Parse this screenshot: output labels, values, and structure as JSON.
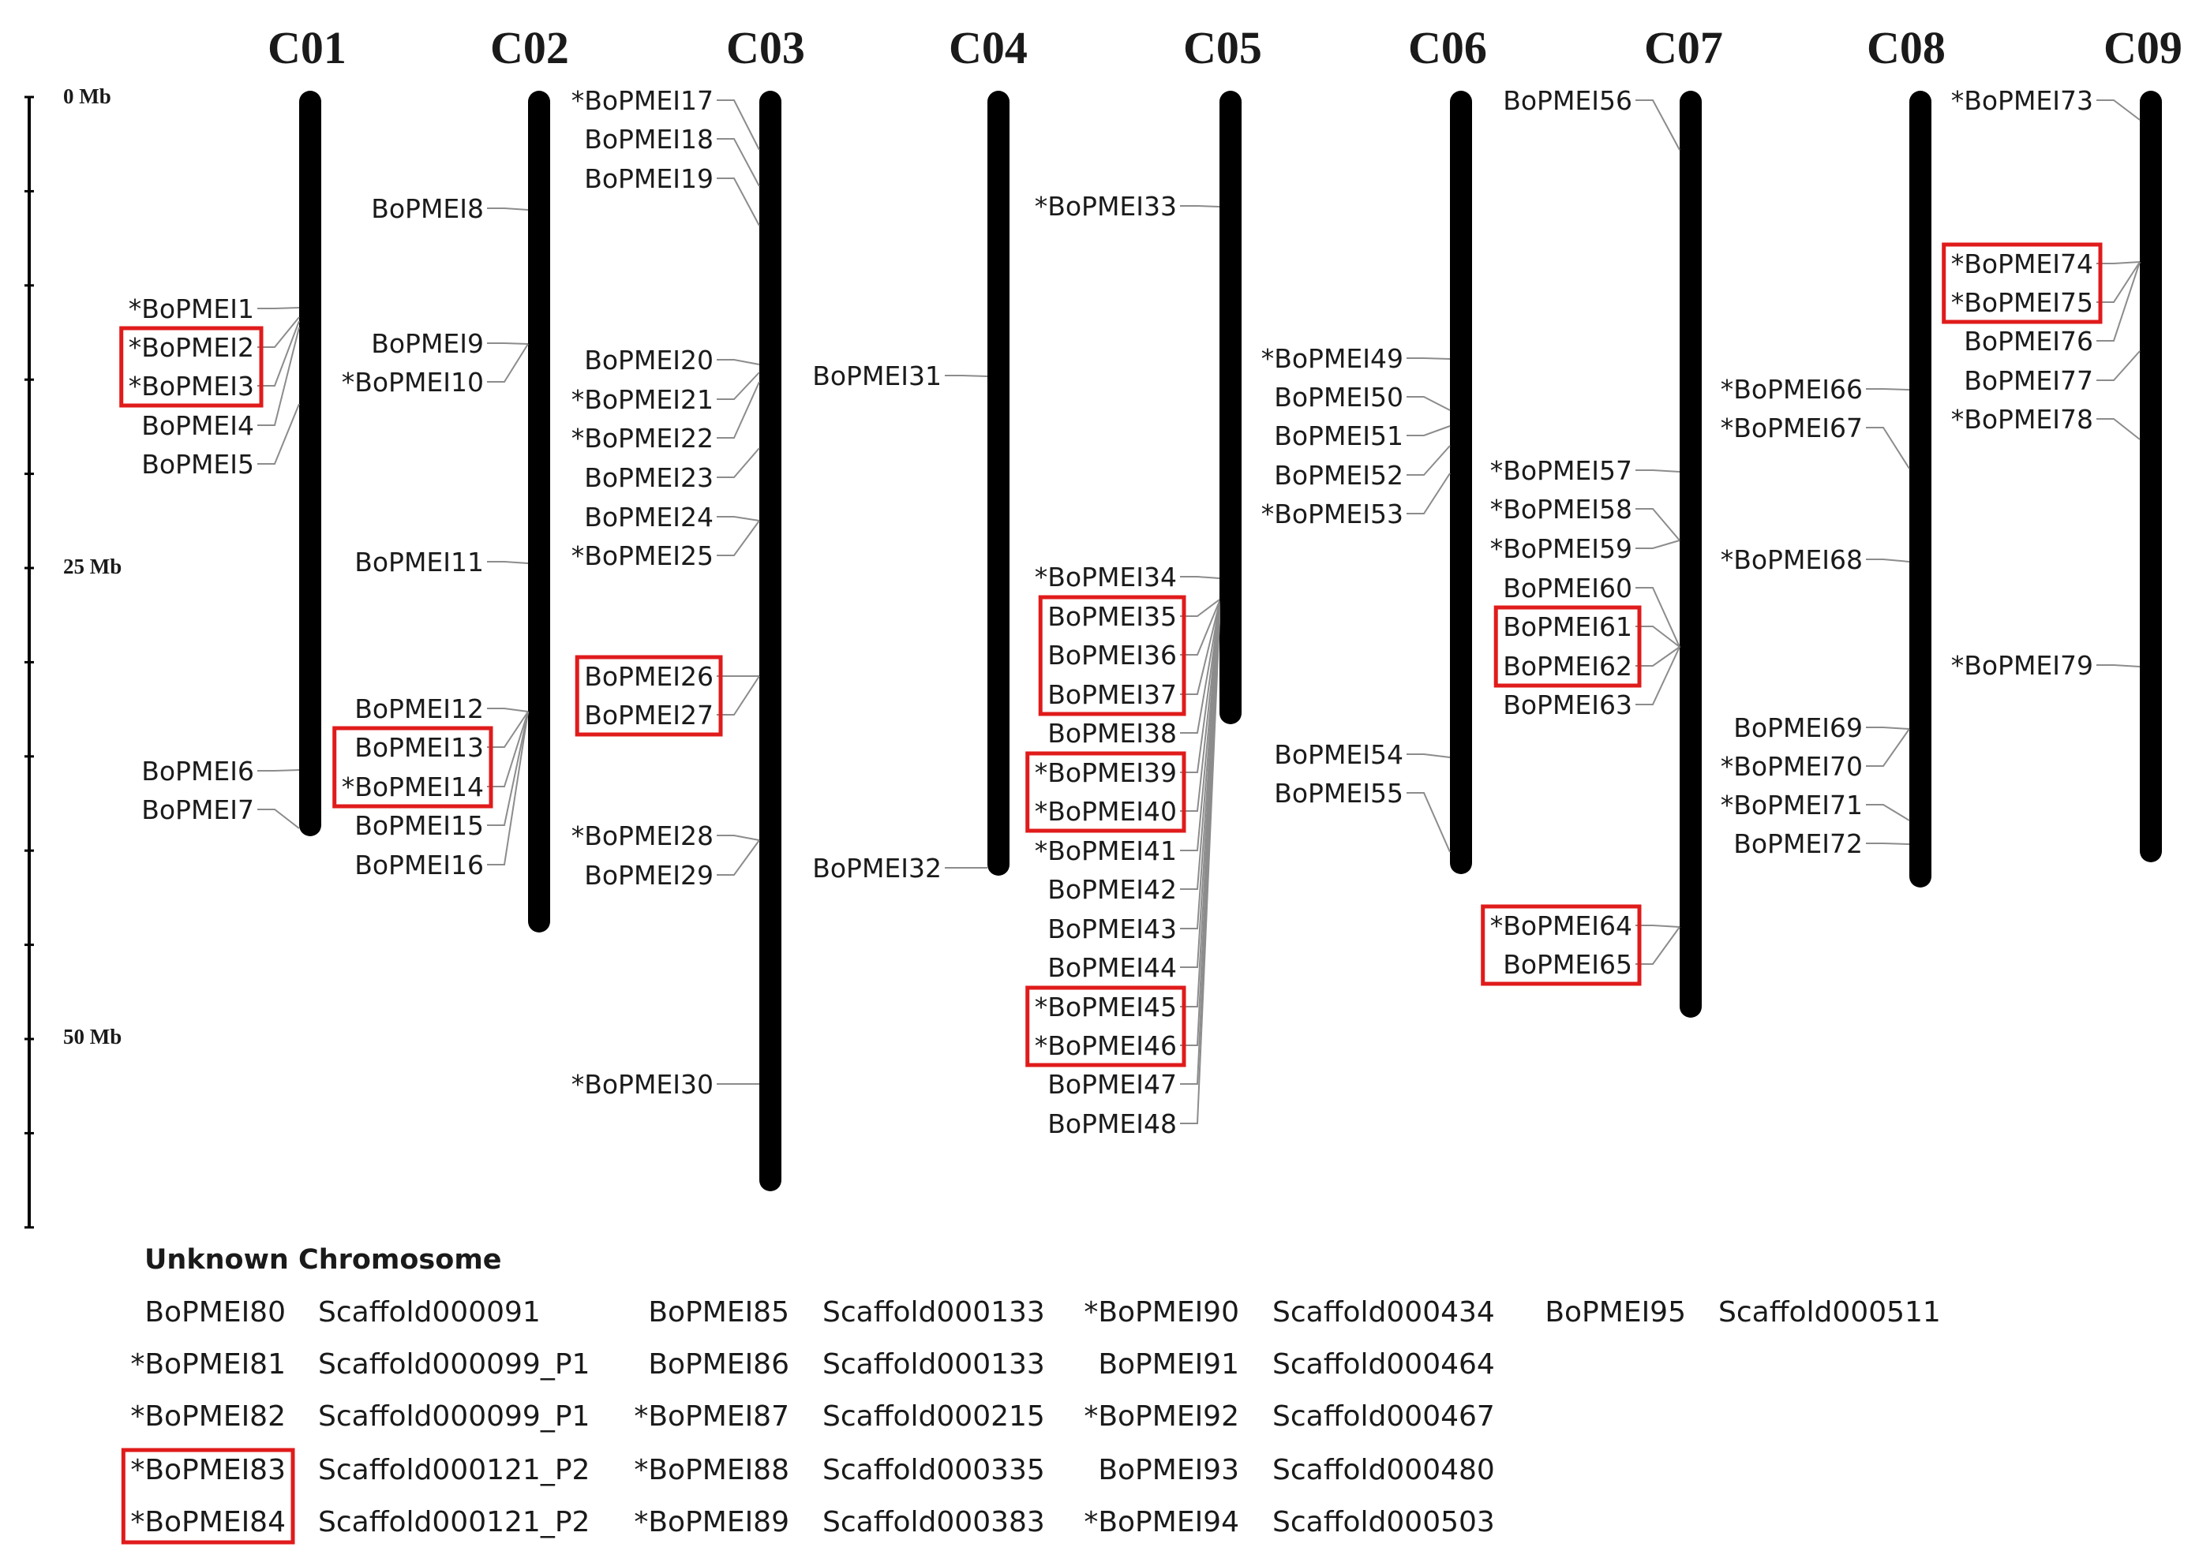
{
  "scale": {
    "labels": [
      "0 Mb",
      "25 Mb",
      "50 Mb"
    ]
  },
  "chromosomes": [
    {
      "name": "C01",
      "genes": [
        {
          "label": "*BoPMEI1"
        },
        {
          "label": "*BoPMEI2"
        },
        {
          "label": "*BoPMEI3"
        },
        {
          "label": "BoPMEI4"
        },
        {
          "label": "BoPMEI5"
        },
        {
          "label": "BoPMEI6"
        },
        {
          "label": "BoPMEI7"
        }
      ]
    },
    {
      "name": "C02",
      "genes": [
        {
          "label": "BoPMEI8"
        },
        {
          "label": "BoPMEI9"
        },
        {
          "label": "*BoPMEI10"
        },
        {
          "label": "BoPMEI11"
        },
        {
          "label": "BoPMEI12"
        },
        {
          "label": "BoPMEI13"
        },
        {
          "label": "*BoPMEI14"
        },
        {
          "label": "BoPMEI15"
        },
        {
          "label": "BoPMEI16"
        }
      ]
    },
    {
      "name": "C03",
      "genes": [
        {
          "label": "*BoPMEI17"
        },
        {
          "label": "BoPMEI18"
        },
        {
          "label": "BoPMEI19"
        },
        {
          "label": "BoPMEI20"
        },
        {
          "label": "*BoPMEI21"
        },
        {
          "label": "*BoPMEI22"
        },
        {
          "label": "BoPMEI23"
        },
        {
          "label": "BoPMEI24"
        },
        {
          "label": "*BoPMEI25"
        },
        {
          "label": "BoPMEI26"
        },
        {
          "label": "BoPMEI27"
        },
        {
          "label": "*BoPMEI28"
        },
        {
          "label": "BoPMEI29"
        },
        {
          "label": "*BoPMEI30"
        }
      ]
    },
    {
      "name": "C04",
      "genes": [
        {
          "label": "BoPMEI31"
        },
        {
          "label": "BoPMEI32"
        }
      ]
    },
    {
      "name": "C05",
      "genes": [
        {
          "label": "*BoPMEI33"
        },
        {
          "label": "*BoPMEI34"
        },
        {
          "label": "BoPMEI35"
        },
        {
          "label": "BoPMEI36"
        },
        {
          "label": "BoPMEI37"
        },
        {
          "label": "BoPMEI38"
        },
        {
          "label": "*BoPMEI39"
        },
        {
          "label": "*BoPMEI40"
        },
        {
          "label": "*BoPMEI41"
        },
        {
          "label": "BoPMEI42"
        },
        {
          "label": "BoPMEI43"
        },
        {
          "label": "BoPMEI44"
        },
        {
          "label": "*BoPMEI45"
        },
        {
          "label": "*BoPMEI46"
        },
        {
          "label": "BoPMEI47"
        },
        {
          "label": "BoPMEI48"
        }
      ]
    },
    {
      "name": "C06",
      "genes": [
        {
          "label": "*BoPMEI49"
        },
        {
          "label": "BoPMEI50"
        },
        {
          "label": "BoPMEI51"
        },
        {
          "label": "BoPMEI52"
        },
        {
          "label": "*BoPMEI53"
        },
        {
          "label": "BoPMEI54"
        },
        {
          "label": "BoPMEI55"
        }
      ]
    },
    {
      "name": "C07",
      "genes": [
        {
          "label": "BoPMEI56"
        },
        {
          "label": "*BoPMEI57"
        },
        {
          "label": "*BoPMEI58"
        },
        {
          "label": "*BoPMEI59"
        },
        {
          "label": "BoPMEI60"
        },
        {
          "label": "BoPMEI61"
        },
        {
          "label": "BoPMEI62"
        },
        {
          "label": "BoPMEI63"
        },
        {
          "label": "*BoPMEI64"
        },
        {
          "label": "BoPMEI65"
        }
      ]
    },
    {
      "name": "C08",
      "genes": [
        {
          "label": "*BoPMEI66"
        },
        {
          "label": "*BoPMEI67"
        },
        {
          "label": "*BoPMEI68"
        },
        {
          "label": "BoPMEI69"
        },
        {
          "label": "*BoPMEI70"
        },
        {
          "label": "*BoPMEI71"
        },
        {
          "label": "BoPMEI72"
        }
      ]
    },
    {
      "name": "C09",
      "genes": [
        {
          "label": "*BoPMEI73"
        },
        {
          "label": "*BoPMEI74"
        },
        {
          "label": "*BoPMEI75"
        },
        {
          "label": "BoPMEI76"
        },
        {
          "label": "BoPMEI77"
        },
        {
          "label": "*BoPMEI78"
        },
        {
          "label": "*BoPMEI79"
        }
      ]
    }
  ],
  "highlight_color": "#e01b1b",
  "highlighted_pairs": [
    [
      "*BoPMEI2",
      "*BoPMEI3"
    ],
    [
      "BoPMEI13",
      "*BoPMEI14"
    ],
    [
      "BoPMEI26",
      "BoPMEI27"
    ],
    [
      "BoPMEI35",
      "BoPMEI37"
    ],
    [
      "*BoPMEI39",
      "*BoPMEI40"
    ],
    [
      "*BoPMEI45",
      "*BoPMEI46"
    ],
    [
      "BoPMEI61",
      "BoPMEI62"
    ],
    [
      "*BoPMEI64",
      "BoPMEI65"
    ],
    [
      "*BoPMEI74",
      "*BoPMEI75"
    ],
    [
      "*BoPMEI83",
      "*BoPMEI84"
    ]
  ],
  "unknown": {
    "title": "Unknown Chromosome",
    "columns": [
      [
        {
          "gene": "BoPMEI80",
          "scaffold": "Scaffold000091"
        },
        {
          "gene": "*BoPMEI81",
          "scaffold": "Scaffold000099_P1"
        },
        {
          "gene": "*BoPMEI82",
          "scaffold": "Scaffold000099_P1"
        },
        {
          "gene": "*BoPMEI83",
          "scaffold": "Scaffold000121_P2"
        },
        {
          "gene": "*BoPMEI84",
          "scaffold": "Scaffold000121_P2"
        }
      ],
      [
        {
          "gene": "BoPMEI85",
          "scaffold": "Scaffold000133"
        },
        {
          "gene": "BoPMEI86",
          "scaffold": "Scaffold000133"
        },
        {
          "gene": "*BoPMEI87",
          "scaffold": "Scaffold000215"
        },
        {
          "gene": "*BoPMEI88",
          "scaffold": "Scaffold000335"
        },
        {
          "gene": "*BoPMEI89",
          "scaffold": "Scaffold000383"
        }
      ],
      [
        {
          "gene": "*BoPMEI90",
          "scaffold": "Scaffold000434"
        },
        {
          "gene": "BoPMEI91",
          "scaffold": "Scaffold000464"
        },
        {
          "gene": "*BoPMEI92",
          "scaffold": "Scaffold000467"
        },
        {
          "gene": "BoPMEI93",
          "scaffold": "Scaffold000480"
        },
        {
          "gene": "*BoPMEI94",
          "scaffold": "Scaffold000503"
        }
      ],
      [
        {
          "gene": "BoPMEI95",
          "scaffold": "Scaffold000511"
        }
      ]
    ]
  }
}
